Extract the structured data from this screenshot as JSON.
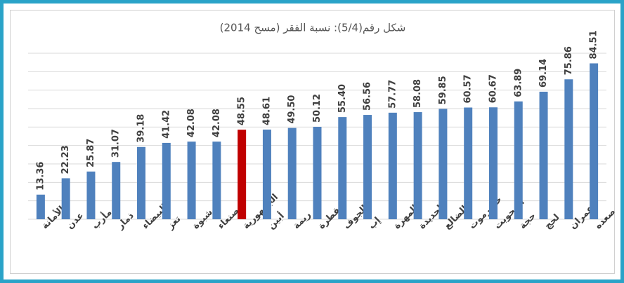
{
  "chart_data": {
    "type": "bar",
    "title": "شكل رقم(5/4): نسبة الفقر (مسح 2014)",
    "categories": [
      "الأمانة",
      "عدن",
      "مأرب",
      "ذمار",
      "البيضاء",
      "تعز",
      "شبوة",
      "صنعاء",
      "الجمهورية",
      "أبين",
      "ريمة",
      "سقطرة",
      "الجوف",
      "إب",
      "المهرة",
      "الحديدة",
      "الضالع",
      "حضرموت",
      "المحويت",
      "حجة",
      "لحج",
      "عمران",
      "صعده"
    ],
    "values": [
      13.36,
      22.23,
      25.87,
      31.07,
      39.18,
      41.42,
      42.08,
      42.08,
      48.55,
      48.61,
      49.5,
      50.12,
      55.4,
      56.56,
      57.77,
      58.08,
      59.85,
      60.57,
      60.67,
      63.89,
      69.14,
      75.86,
      84.51
    ],
    "value_labels": [
      "13.36",
      "22.23",
      "25.87",
      "31.07",
      "39.18",
      "41.42",
      "42.08",
      "42.08",
      "48.55",
      "48.61",
      "49.50",
      "50.12",
      "55.40",
      "56.56",
      "57.77",
      "58.08",
      "59.85",
      "60.57",
      "60.67",
      "63.89",
      "69.14",
      "75.86",
      "84.51"
    ],
    "colors": [
      "#4f81bd",
      "#4f81bd",
      "#4f81bd",
      "#4f81bd",
      "#4f81bd",
      "#4f81bd",
      "#4f81bd",
      "#4f81bd",
      "#c00000",
      "#4f81bd",
      "#4f81bd",
      "#4f81bd",
      "#4f81bd",
      "#4f81bd",
      "#4f81bd",
      "#4f81bd",
      "#4f81bd",
      "#4f81bd",
      "#4f81bd",
      "#4f81bd",
      "#4f81bd",
      "#4f81bd",
      "#4f81bd"
    ],
    "ylim": [
      0,
      90
    ],
    "yticks": [
      0,
      10,
      20,
      30,
      40,
      50,
      60,
      70,
      80,
      90
    ],
    "grid": true
  }
}
